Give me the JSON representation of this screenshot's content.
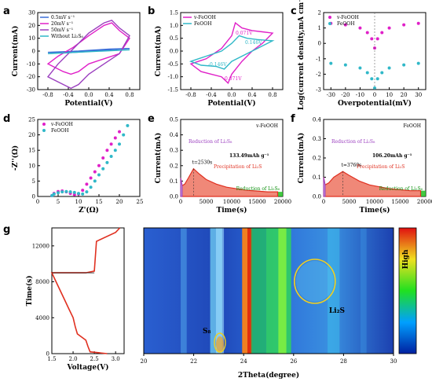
{
  "panel_labels": [
    "a",
    "b",
    "c",
    "d",
    "e",
    "f",
    "g"
  ],
  "colors": {
    "magenta": "#e020c8",
    "cyan": "#30b8c8",
    "dblue": "#3a6fd8",
    "purple": "#9b3fbf",
    "red": "#e03020",
    "green": "#20c020",
    "yellow": "#f0d020",
    "heat_bg": "#1a3fb0"
  },
  "chart_data": [
    {
      "id": "a",
      "type": "line",
      "xlabel": "Potential(V)",
      "ylabel": "Current(mA)",
      "xlim": [
        -1.0,
        1.0
      ],
      "ylim": [
        -30,
        30
      ],
      "xticks": [
        "-0.8",
        "-0.4",
        "0.0",
        "0.4",
        "0.8"
      ],
      "yticks": [
        "-30",
        "-20",
        "-10",
        "0",
        "10",
        "20",
        "30"
      ],
      "legend": [
        "0.5mV s⁻¹",
        "20mV s⁻¹",
        "50mV s⁻¹",
        "Without Li₂S₆"
      ],
      "series": [
        {
          "name": "0.5mV s⁻¹",
          "color": "#3a6fd8",
          "x": [
            -0.8,
            -0.5,
            -0.2,
            0.1,
            0.4,
            0.8,
            0.4,
            0.1,
            -0.2,
            -0.5,
            -0.8
          ],
          "y": [
            -1,
            -0.5,
            0,
            0.8,
            1.5,
            2,
            1,
            0,
            -0.8,
            -1.5,
            -1
          ]
        },
        {
          "name": "20mV s⁻¹",
          "color": "#e020c8",
          "x": [
            -0.8,
            -0.6,
            -0.3,
            0.0,
            0.3,
            0.45,
            0.6,
            0.8,
            0.6,
            0.3,
            0.0,
            -0.2,
            -0.35,
            -0.5,
            -0.8
          ],
          "y": [
            -10,
            -4,
            3,
            12,
            20,
            22,
            16,
            10,
            -2,
            -6,
            -10,
            -16,
            -18,
            -16,
            -10
          ]
        },
        {
          "name": "50mV s⁻¹",
          "color": "#9b3fbf",
          "x": [
            -0.8,
            -0.6,
            -0.3,
            0.0,
            0.3,
            0.45,
            0.6,
            0.8,
            0.6,
            0.3,
            0.0,
            -0.2,
            -0.35,
            -0.5,
            -0.8
          ],
          "y": [
            -20,
            -10,
            2,
            14,
            22,
            24,
            18,
            12,
            -2,
            -10,
            -18,
            -26,
            -29,
            -26,
            -20
          ]
        },
        {
          "name": "Without Li₂S₆",
          "color": "#30b8c8",
          "x": [
            -0.8,
            0.0,
            0.8,
            0.0,
            -0.8
          ],
          "y": [
            -2,
            -0.5,
            1,
            -0.5,
            -2
          ]
        }
      ]
    },
    {
      "id": "b",
      "type": "line",
      "xlabel": "Potential(V)",
      "ylabel": "Current(mA)",
      "xlim": [
        -1.0,
        1.0
      ],
      "ylim": [
        -1.5,
        1.5
      ],
      "xticks": [
        "-0.8",
        "-0.4",
        "0.0",
        "0.4",
        "0.8"
      ],
      "yticks": [
        "-1.5",
        "-1.0",
        "-0.5",
        "0.0",
        "0.5",
        "1.0",
        "1.5"
      ],
      "legend": [
        "v-FeOOH",
        "FeOOH"
      ],
      "annotations": [
        "0.071V",
        "0.146V",
        "-0.146V",
        "-0.071V"
      ],
      "series": [
        {
          "name": "v-FeOOH",
          "color": "#e020c8",
          "x": [
            -0.8,
            -0.5,
            -0.2,
            0.0,
            0.071,
            0.2,
            0.4,
            0.6,
            0.8,
            0.6,
            0.4,
            0.2,
            0.0,
            -0.071,
            -0.2,
            -0.4,
            -0.6,
            -0.8
          ],
          "y": [
            -0.5,
            -0.3,
            0.1,
            0.6,
            1.1,
            0.9,
            0.8,
            0.75,
            0.7,
            0.3,
            0.0,
            -0.4,
            -0.9,
            -1.25,
            -1.0,
            -0.9,
            -0.8,
            -0.5
          ]
        },
        {
          "name": "FeOOH",
          "color": "#30b8c8",
          "x": [
            -0.8,
            -0.5,
            -0.2,
            0.0,
            0.146,
            0.3,
            0.5,
            0.8,
            0.5,
            0.3,
            0.0,
            -0.146,
            -0.3,
            -0.6,
            -0.8
          ],
          "y": [
            -0.4,
            -0.2,
            0.0,
            0.3,
            0.6,
            0.5,
            0.45,
            0.4,
            0.1,
            -0.1,
            -0.4,
            -0.7,
            -0.6,
            -0.55,
            -0.4
          ]
        }
      ]
    },
    {
      "id": "c",
      "type": "line",
      "xlabel": "Overpotential(mV)",
      "ylabel": "Log(current density,mA cm⁻²)",
      "xlim": [
        -35,
        35
      ],
      "ylim": [
        -3,
        2
      ],
      "xticks": [
        "-30",
        "-20",
        "-10",
        "0",
        "10",
        "20",
        "30"
      ],
      "yticks": [
        "-3",
        "-2",
        "-1",
        "0",
        "1",
        "2"
      ],
      "legend": [
        "v-FeOOH",
        "FeOOH"
      ],
      "series": [
        {
          "name": "v-FeOOH",
          "color": "#e020c8",
          "x": [
            -30,
            -20,
            -10,
            -5,
            -2,
            0,
            2,
            5,
            10,
            20,
            30
          ],
          "y": [
            1.3,
            1.2,
            1.0,
            0.7,
            0.3,
            -0.3,
            0.3,
            0.7,
            1.0,
            1.2,
            1.3
          ]
        },
        {
          "name": "FeOOH",
          "color": "#30b8c8",
          "x": [
            -30,
            -20,
            -10,
            -5,
            -2,
            0,
            2,
            5,
            10,
            20,
            30
          ],
          "y": [
            -1.3,
            -1.4,
            -1.6,
            -1.9,
            -2.3,
            -2.9,
            -2.3,
            -1.9,
            -1.6,
            -1.4,
            -1.3
          ]
        }
      ]
    },
    {
      "id": "d",
      "type": "scatter",
      "xlabel": "Z'(Ω)",
      "ylabel": "-Z''(Ω)",
      "xlim": [
        0,
        25
      ],
      "ylim": [
        0,
        25
      ],
      "xticks": [
        "0",
        "5",
        "10",
        "15",
        "20",
        "25"
      ],
      "yticks": [
        "0",
        "5",
        "10",
        "15",
        "20",
        "25"
      ],
      "legend": [
        "v-FeOOH",
        "FeOOH"
      ],
      "series": [
        {
          "name": "v-FeOOH",
          "color": "#e020c8",
          "x": [
            3.5,
            4,
            5,
            6,
            7,
            8,
            9,
            10,
            11,
            12,
            13,
            14,
            15,
            16,
            17,
            18,
            19,
            20
          ],
          "y": [
            0.3,
            1,
            1.6,
            1.8,
            1.5,
            1,
            0.6,
            0.8,
            2,
            4,
            6,
            8,
            10,
            12.5,
            15,
            17,
            19,
            21
          ]
        },
        {
          "name": "FeOOH",
          "color": "#30b8c8",
          "x": [
            3.5,
            4,
            5,
            6,
            7,
            8,
            9,
            10,
            11,
            12,
            13,
            14,
            15,
            16,
            17,
            18,
            19,
            20,
            21,
            22
          ],
          "y": [
            0.3,
            0.8,
            1.2,
            1.5,
            1.6,
            1.5,
            1.3,
            1.0,
            0.8,
            1.5,
            3,
            5,
            7,
            9,
            11,
            13,
            15,
            17,
            20,
            23
          ]
        }
      ]
    },
    {
      "id": "e",
      "type": "area",
      "title": "v-FeOOH",
      "xlabel": "Time(s)",
      "ylabel": "Current(mA)",
      "xlim": [
        0,
        20000
      ],
      "ylim": [
        0,
        0.5
      ],
      "xticks": [
        "0",
        "5000",
        "10000",
        "15000",
        "20000"
      ],
      "yticks": [
        "0.0",
        "0.1",
        "0.2",
        "0.3",
        "0.4",
        "0.5"
      ],
      "annotations": [
        "Reduction of Li₂S₈",
        "t=2530s",
        "133.49mAh g⁻¹",
        "Precipitation of Li₂S",
        "Reduction of Li₂S₆"
      ],
      "series": [
        {
          "name": "",
          "color": "#e03020",
          "x": [
            0,
            300,
            800,
            1500,
            2530,
            3500,
            5000,
            7000,
            9000,
            11000,
            13000,
            15000,
            17000,
            19000
          ],
          "y": [
            0.12,
            0.07,
            0.08,
            0.12,
            0.18,
            0.15,
            0.11,
            0.08,
            0.06,
            0.05,
            0.04,
            0.035,
            0.03,
            0.03
          ]
        }
      ]
    },
    {
      "id": "f",
      "type": "area",
      "title": "FeOOH",
      "xlabel": "Time(s)",
      "ylabel": "Current(mA)",
      "xlim": [
        0,
        20000
      ],
      "ylim": [
        0,
        0.4
      ],
      "xticks": [
        "0",
        "5000",
        "10000",
        "15000",
        "20000"
      ],
      "yticks": [
        "0.0",
        "0.1",
        "0.2",
        "0.3",
        "0.4"
      ],
      "annotations": [
        "Reduction of Li₂S₈",
        "t=3760s",
        "106.20mAh g⁻¹",
        "Precipitation of Li₂S",
        "Reduction of Li₂S₆"
      ],
      "series": [
        {
          "name": "",
          "color": "#e03020",
          "x": [
            0,
            300,
            1000,
            2000,
            3760,
            5000,
            7000,
            9000,
            11000,
            13000,
            15000,
            17000,
            19000
          ],
          "y": [
            0.1,
            0.06,
            0.07,
            0.1,
            0.13,
            0.11,
            0.08,
            0.06,
            0.05,
            0.04,
            0.035,
            0.03,
            0.03
          ]
        }
      ]
    },
    {
      "id": "g-left",
      "type": "line",
      "xlabel": "Voltage(V)",
      "ylabel": "Time(s)",
      "xlim": [
        1.5,
        3.2
      ],
      "ylim": [
        0,
        14000
      ],
      "xticks": [
        "1.5",
        "2.0",
        "2.5",
        "3.0"
      ],
      "yticks": [
        "0",
        "4000",
        "8000",
        "12000"
      ],
      "series": [
        {
          "name": "",
          "color": "#e03020",
          "x": [
            2.8,
            2.4,
            2.35,
            2.3,
            2.1,
            2.05,
            2.0,
            1.9,
            1.8,
            1.7,
            1.6,
            1.5,
            2.3,
            2.5,
            2.55,
            3.0,
            3.1
          ],
          "y": [
            0,
            200,
            800,
            1500,
            2200,
            3000,
            4000,
            5000,
            6000,
            7000,
            8000,
            9000,
            9000,
            9200,
            12500,
            13500,
            14000
          ]
        }
      ]
    },
    {
      "id": "g-right",
      "type": "heatmap",
      "xlabel": "2Theta(degree)",
      "colorbar_label": "High",
      "xlim": [
        20,
        30
      ],
      "xticks": [
        "20",
        "22",
        "24",
        "26",
        "28",
        "30"
      ],
      "annotations": [
        "S₈",
        "Li₂S"
      ]
    }
  ]
}
